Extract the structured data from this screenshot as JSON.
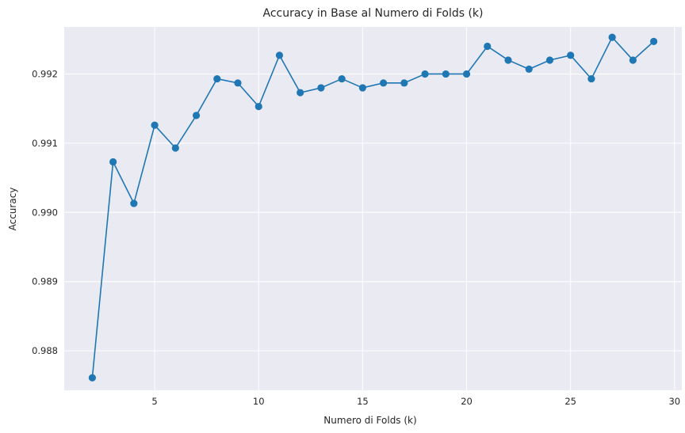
{
  "chart_data": {
    "type": "line",
    "title": "Accuracy in Base al Numero di Folds (k)",
    "xlabel": "Numero di Folds (k)",
    "ylabel": "Accuracy",
    "xlim": [
      0.65,
      30.35
    ],
    "ylim": [
      0.98743,
      0.99268
    ],
    "xticks": [
      5,
      10,
      15,
      20,
      25,
      30
    ],
    "yticks": [
      0.988,
      0.989,
      0.99,
      0.991,
      0.992
    ],
    "ytick_labels": [
      "0.988",
      "0.989",
      "0.990",
      "0.991",
      "0.992"
    ],
    "xtick_labels": [
      "5",
      "10",
      "15",
      "20",
      "25",
      "30"
    ],
    "grid": true,
    "series_color": "#1f77b4",
    "background_color": "#eaeaf2",
    "x": [
      2,
      3,
      4,
      5,
      6,
      7,
      8,
      9,
      10,
      11,
      12,
      13,
      14,
      15,
      16,
      17,
      18,
      19,
      20,
      21,
      22,
      23,
      24,
      25,
      26,
      27,
      28,
      29
    ],
    "y": [
      0.98761,
      0.99073,
      0.99013,
      0.99126,
      0.99093,
      0.9914,
      0.99193,
      0.99187,
      0.99153,
      0.99227,
      0.99173,
      0.9918,
      0.99193,
      0.9918,
      0.99187,
      0.99187,
      0.992,
      0.992,
      0.992,
      0.9924,
      0.9922,
      0.99207,
      0.9922,
      0.99227,
      0.99193,
      0.99253,
      0.9922,
      0.99247
    ]
  }
}
